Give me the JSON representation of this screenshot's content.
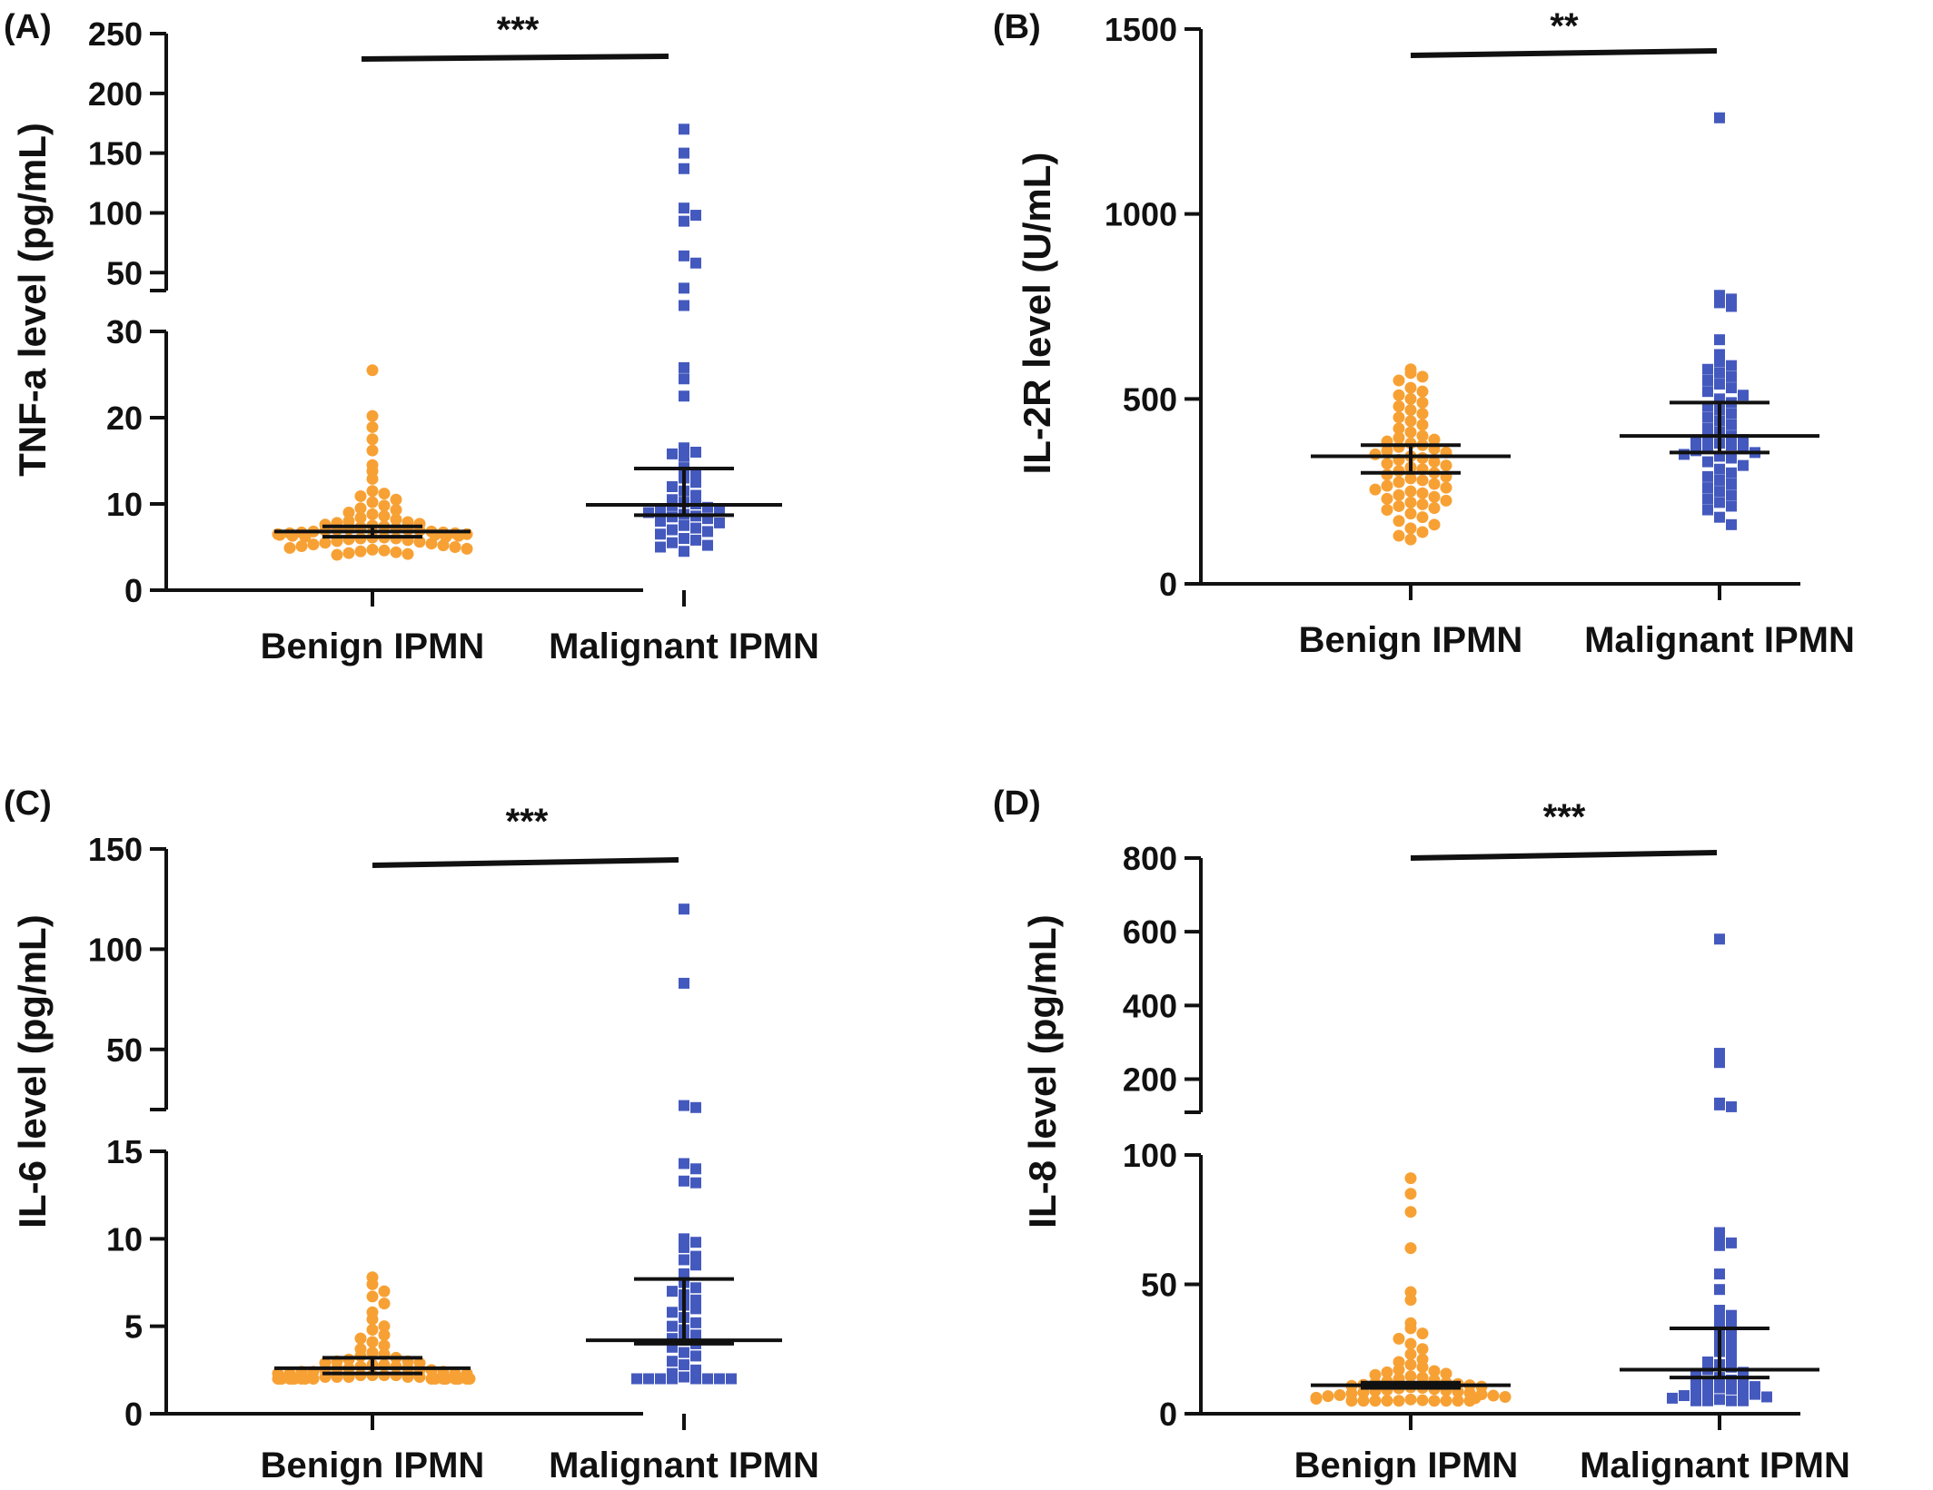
{
  "figure": {
    "colors": {
      "benign": "#F7A135",
      "malignant": "#4459BE",
      "axis": "#111111"
    }
  },
  "chart_data": [
    {
      "panel": "(A)",
      "type": "scatter",
      "ylabel": "TNF-a level (pg/mL)",
      "categories": [
        "Benign IPMN",
        "Malignant IPMN"
      ],
      "broken_axis": true,
      "segments": [
        {
          "range": [
            0,
            30
          ],
          "ticks": [
            0,
            10,
            20,
            30
          ]
        },
        {
          "range": [
            35,
            250
          ],
          "ticks": [
            50,
            100,
            150,
            200,
            250
          ]
        }
      ],
      "significance": "***",
      "series": [
        {
          "name": "Benign IPMN",
          "marker": "circle",
          "color": "#F7A135",
          "values": [
            25.5,
            20.2,
            18.9,
            17.5,
            16.2,
            14.5,
            13.8,
            12.9,
            11.5,
            11.2,
            10.9,
            10.5,
            10.2,
            9.8,
            9.5,
            9.3,
            9.0,
            8.8,
            8.6,
            8.4,
            8.2,
            8.0,
            7.9,
            7.8,
            7.7,
            7.6,
            7.5,
            7.4,
            7.3,
            7.2,
            7.1,
            7.0,
            7.0,
            6.9,
            6.9,
            6.8,
            6.8,
            6.7,
            6.7,
            6.6,
            6.6,
            6.5,
            6.5,
            6.4,
            6.4,
            6.3,
            6.3,
            6.2,
            6.2,
            6.1,
            6.1,
            6.0,
            6.0,
            5.9,
            5.8,
            5.7,
            5.6,
            5.5,
            5.4,
            5.3,
            5.2,
            5.1,
            5.0,
            4.9,
            4.8,
            4.7,
            4.6,
            4.5,
            4.4,
            4.3,
            4.2,
            4.1
          ],
          "median": 6.8,
          "ci": [
            6.2,
            7.4
          ]
        },
        {
          "name": "Malignant IPMN",
          "marker": "square",
          "color": "#4459BE",
          "values": [
            170,
            150,
            137,
            104,
            98,
            93,
            64,
            58,
            37,
            33,
            25.8,
            24.5,
            22.5,
            16.5,
            16.0,
            15.8,
            15.5,
            14.2,
            13.5,
            13.0,
            12.5,
            12.0,
            11.5,
            11.0,
            10.5,
            10.2,
            10.0,
            9.8,
            9.6,
            9.4,
            9.2,
            9.0,
            8.8,
            8.6,
            8.5,
            8.3,
            8.0,
            7.8,
            7.5,
            7.2,
            7.0,
            6.8,
            6.5,
            6.0,
            5.8,
            5.5,
            5.2,
            5.0,
            4.5
          ],
          "median": 9.9,
          "ci": [
            8.7,
            14.1
          ]
        }
      ]
    },
    {
      "panel": "(B)",
      "type": "scatter",
      "ylabel": "IL-2R level (U/mL)",
      "categories": [
        "Benign IPMN",
        "Malignant IPMN"
      ],
      "broken_axis": false,
      "ylim": [
        0,
        1500
      ],
      "ticks": [
        0,
        500,
        1000,
        1500
      ],
      "significance": "**",
      "series": [
        {
          "name": "Benign IPMN",
          "marker": "circle",
          "color": "#F7A135",
          "values": [
            580,
            570,
            560,
            550,
            530,
            520,
            510,
            500,
            490,
            480,
            470,
            460,
            450,
            440,
            430,
            420,
            410,
            400,
            395,
            390,
            385,
            380,
            375,
            370,
            365,
            360,
            355,
            350,
            345,
            340,
            335,
            330,
            325,
            320,
            315,
            310,
            305,
            300,
            295,
            290,
            285,
            280,
            275,
            270,
            265,
            260,
            255,
            250,
            245,
            240,
            235,
            230,
            225,
            220,
            215,
            210,
            205,
            200,
            190,
            180,
            170,
            160,
            150,
            140,
            130,
            120
          ],
          "median": 345,
          "ci": [
            300,
            375
          ]
        },
        {
          "name": "Malignant IPMN",
          "marker": "square",
          "color": "#4459BE",
          "values": [
            1260,
            780,
            770,
            760,
            750,
            660,
            620,
            600,
            590,
            580,
            570,
            560,
            550,
            540,
            530,
            520,
            510,
            500,
            490,
            480,
            470,
            460,
            450,
            440,
            430,
            420,
            410,
            400,
            395,
            390,
            385,
            380,
            375,
            370,
            365,
            360,
            355,
            350,
            345,
            340,
            330,
            320,
            310,
            300,
            290,
            280,
            270,
            260,
            250,
            240,
            230,
            220,
            210,
            200,
            180,
            160
          ],
          "median": 400,
          "ci": [
            355,
            490
          ]
        }
      ]
    },
    {
      "panel": "(C)",
      "type": "scatter",
      "ylabel": "IL-6 level (pg/mL)",
      "categories": [
        "Benign IPMN",
        "Malignant IPMN"
      ],
      "broken_axis": true,
      "segments": [
        {
          "range": [
            0,
            15
          ],
          "ticks": [
            0,
            5,
            10,
            15
          ]
        },
        {
          "range": [
            20,
            150
          ],
          "ticks": [
            50,
            100,
            150
          ]
        }
      ],
      "significance": "***",
      "series": [
        {
          "name": "Benign IPMN",
          "marker": "circle",
          "color": "#F7A135",
          "values": [
            7.8,
            7.4,
            7.0,
            6.7,
            6.3,
            5.8,
            5.4,
            5.0,
            4.8,
            4.5,
            4.3,
            4.1,
            3.9,
            3.7,
            3.5,
            3.4,
            3.3,
            3.2,
            3.1,
            3.0,
            3.0,
            2.9,
            2.9,
            2.8,
            2.8,
            2.7,
            2.7,
            2.6,
            2.6,
            2.6,
            2.5,
            2.5,
            2.5,
            2.4,
            2.4,
            2.4,
            2.3,
            2.3,
            2.3,
            2.3,
            2.2,
            2.2,
            2.2,
            2.2,
            2.1,
            2.1,
            2.1,
            2.1,
            2.1,
            2.0,
            2.0,
            2.0,
            2.0,
            2.0,
            2.0,
            2.0,
            2.0,
            2.0,
            2.0,
            2.0,
            2.0,
            2.0,
            2.0,
            2.0,
            2.0,
            2.0,
            2.0,
            2.0
          ],
          "median": 2.6,
          "ci": [
            2.3,
            3.2
          ]
        },
        {
          "name": "Malignant IPMN",
          "marker": "square",
          "color": "#4459BE",
          "values": [
            120,
            83,
            22,
            21,
            14.3,
            14.0,
            13.3,
            13.2,
            10.0,
            9.8,
            9.5,
            9.0,
            8.8,
            8.5,
            8.0,
            7.5,
            7.2,
            7.0,
            6.8,
            6.5,
            6.2,
            6.0,
            5.8,
            5.5,
            5.2,
            5.0,
            4.8,
            4.5,
            4.3,
            4.2,
            4.0,
            3.8,
            3.5,
            3.3,
            3.0,
            2.8,
            2.5,
            2.3,
            2.1,
            2.0,
            2.0,
            2.0,
            2.0,
            2.0,
            2.0,
            2.0,
            2.0
          ],
          "median": 4.2,
          "ci": [
            4.0,
            7.7
          ]
        }
      ]
    },
    {
      "panel": "(D)",
      "type": "scatter",
      "ylabel": "IL-8 level (pg/mL)",
      "categories": [
        "Benign IPMN",
        "Malignant IPMN"
      ],
      "broken_axis": true,
      "segments": [
        {
          "range": [
            0,
            100
          ],
          "ticks": [
            0,
            50,
            100
          ]
        },
        {
          "range": [
            110,
            800
          ],
          "ticks": [
            200,
            400,
            600,
            800
          ]
        }
      ],
      "significance": "***",
      "series": [
        {
          "name": "Benign IPMN",
          "marker": "circle",
          "color": "#F7A135",
          "values": [
            91,
            85,
            78,
            64,
            47,
            44,
            35,
            33,
            31,
            29,
            27,
            25,
            23,
            21,
            20,
            19,
            18,
            17,
            16.5,
            16,
            15.5,
            15,
            14.5,
            14,
            13.5,
            13,
            12.5,
            12,
            11.8,
            11.5,
            11.2,
            11,
            10.8,
            10.5,
            10.2,
            10,
            9.8,
            9.5,
            9.2,
            9,
            8.8,
            8.5,
            8.2,
            8,
            7.8,
            7.5,
            7.2,
            7,
            6.8,
            6.5,
            6.2,
            6,
            5.8,
            5.5,
            5.2,
            5,
            5,
            5,
            5,
            5,
            5,
            5,
            5,
            5
          ],
          "median": 11,
          "ci": [
            10,
            12
          ]
        },
        {
          "name": "Malignant IPMN",
          "marker": "square",
          "color": "#4459BE",
          "values": [
            580,
            270,
            245,
            135,
            130,
            125,
            70,
            68,
            66,
            65,
            54,
            48,
            40,
            38,
            36,
            34,
            32,
            30,
            28,
            26,
            24,
            22,
            20,
            19,
            18,
            17,
            16,
            15,
            14,
            13,
            12,
            11.5,
            11,
            10.5,
            10,
            9.5,
            9,
            8.5,
            8,
            7.5,
            7,
            6.5,
            6,
            5.5,
            5,
            5,
            5,
            5
          ],
          "median": 17,
          "ci": [
            14,
            33
          ]
        }
      ]
    }
  ]
}
